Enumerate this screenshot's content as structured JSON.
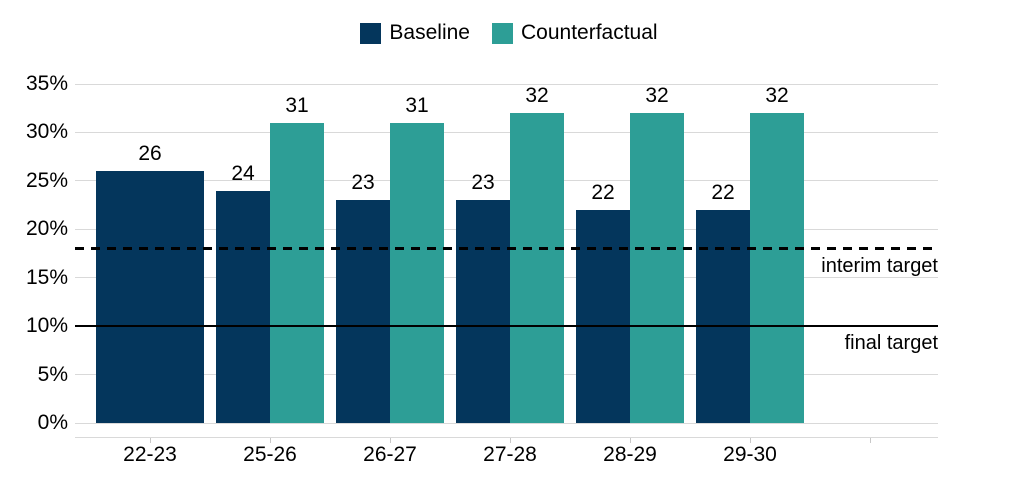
{
  "chart_data": {
    "type": "bar",
    "categories": [
      "22-23",
      "25-26",
      "26-27",
      "27-28",
      "28-29",
      "29-30"
    ],
    "series": [
      {
        "name": "Baseline",
        "color": "#04365c",
        "values": [
          26,
          24,
          23,
          23,
          22,
          22
        ]
      },
      {
        "name": "Counterfactual",
        "color": "#2d9e96",
        "values": [
          null,
          31,
          31,
          32,
          32,
          32
        ]
      }
    ],
    "ylabel": "",
    "xlabel": "",
    "ylim": [
      0,
      35
    ],
    "grid": true,
    "legend_position": "top",
    "y_ticks": [
      {
        "label": "0%",
        "value": 0
      },
      {
        "label": "5%",
        "value": 5
      },
      {
        "label": "10%",
        "value": 10
      },
      {
        "label": "15%",
        "value": 15
      },
      {
        "label": "20%",
        "value": 20
      },
      {
        "label": "25%",
        "value": 25
      },
      {
        "label": "30%",
        "value": 30
      },
      {
        "label": "35%",
        "value": 35
      }
    ],
    "reference_lines": [
      {
        "label": "interim target",
        "value": 18,
        "style": "dashed"
      },
      {
        "label": "final target",
        "value": 10,
        "style": "solid"
      }
    ]
  },
  "colors": {
    "baseline": "#04365c",
    "counterfactual": "#2d9e96",
    "gridline": "#d9d9d9",
    "reference_line": "#000000",
    "text": "#000000",
    "background": "#ffffff"
  }
}
